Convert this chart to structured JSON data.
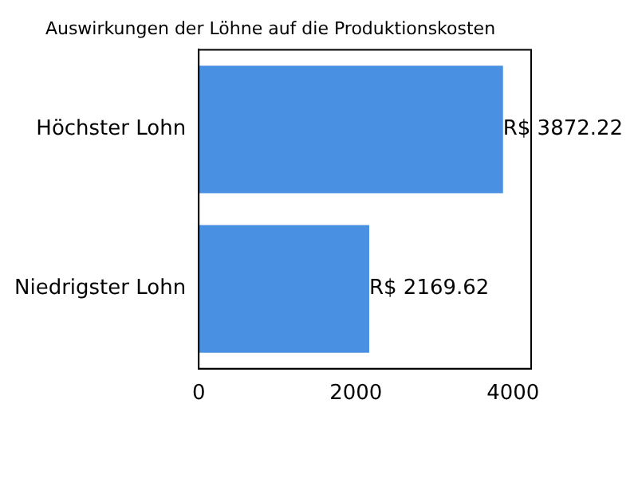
{
  "chart_data": {
    "type": "bar",
    "orientation": "horizontal",
    "title": "Auswirkungen der Löhne auf die Produktionskosten",
    "categories": [
      "Höchster Lohn",
      "Niedrigster Lohn"
    ],
    "values": [
      3872.22,
      2169.62
    ],
    "color": "#4a90e2",
    "value_labels": [
      "R$ 3872.22",
      "R$ 2169.62"
    ],
    "xlim": [
      0,
      4230
    ],
    "xticks": [
      0,
      2000,
      4000
    ],
    "grid": false,
    "legend": false
  }
}
